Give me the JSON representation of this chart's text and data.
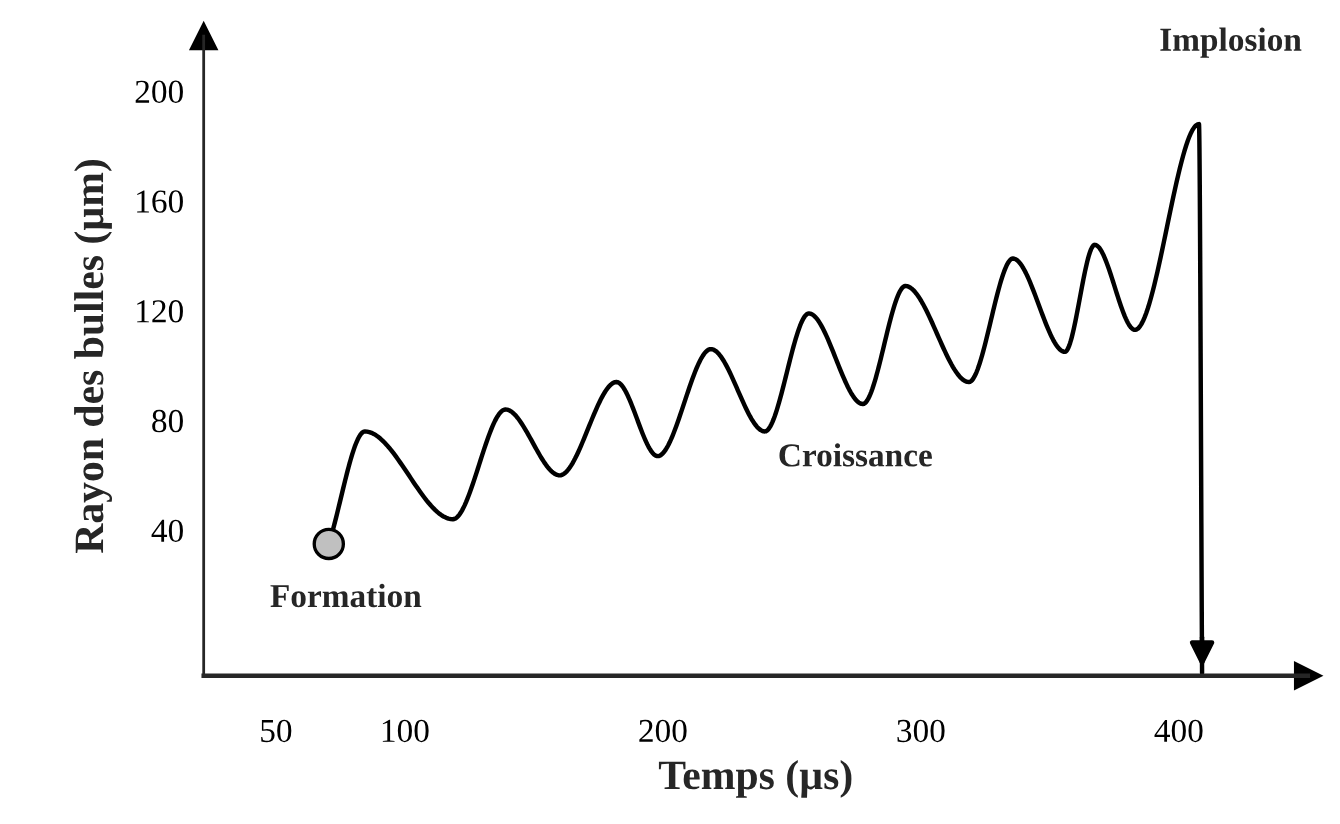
{
  "chart_data": {
    "type": "line",
    "xlabel": "Temps (µs)",
    "ylabel": "Rayon des bulles (µm)",
    "xlim": [
      22,
      450
    ],
    "ylim": [
      -13,
      220
    ],
    "xticks": [
      50,
      100,
      200,
      300,
      400
    ],
    "yticks": [
      40,
      80,
      120,
      160,
      200
    ],
    "grid": false,
    "line_style": "solid",
    "marker": "none",
    "series": [
      {
        "color": "#000000",
        "x": [
          70.5,
          84.5,
          118.6,
          139,
          160,
          182,
          198,
          218.6,
          239.5,
          256.6,
          277.5,
          294,
          318.6,
          335.7,
          355.8,
          367.4,
          383,
          407.8,
          409
        ],
        "values": [
          35,
          76,
          44,
          84,
          60,
          94,
          67,
          106,
          76,
          119,
          86,
          129,
          94,
          139,
          105,
          144,
          113,
          188,
          -12
        ]
      },
      {
        "type": "scatter",
        "marker": "circle",
        "color": "#c0c0c0",
        "x": [
          70.5
        ],
        "values": [
          35
        ]
      }
    ],
    "annotations": [
      "Formation",
      "Croissance",
      "Implosion"
    ]
  }
}
